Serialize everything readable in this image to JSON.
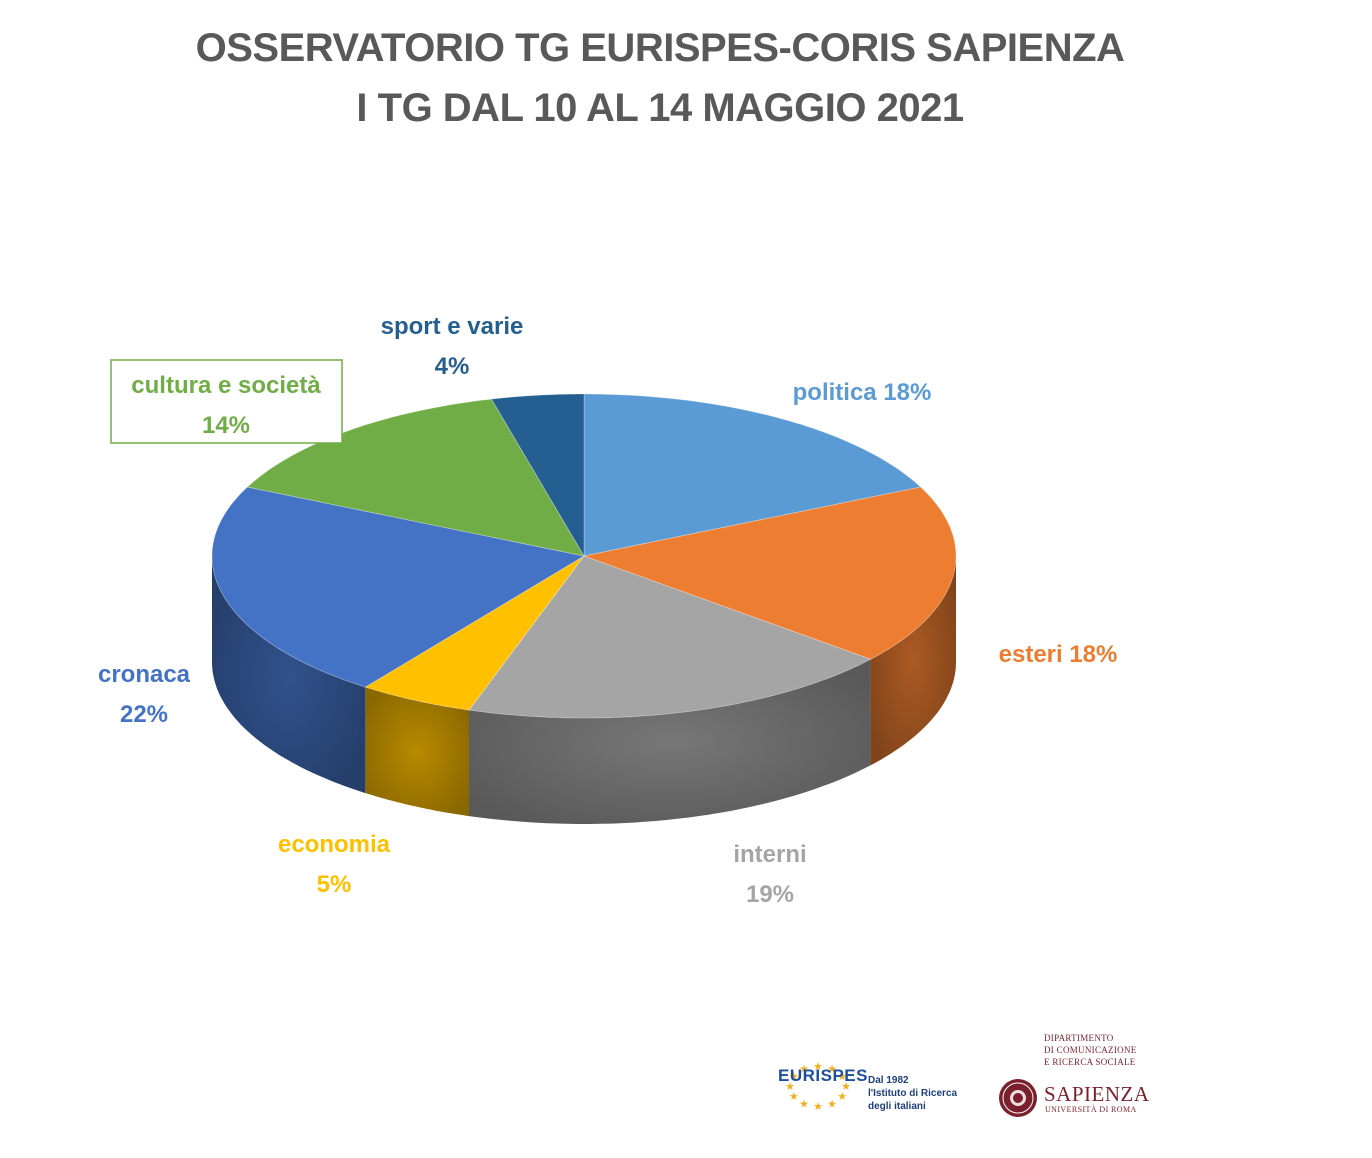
{
  "header": {
    "title_line1": "OSSERVATORIO TG EURISPES-CORIS SAPIENZA",
    "title_line2": "I TG DAL 10 AL 14 MAGGIO 2021"
  },
  "chart_data": {
    "type": "pie",
    "title": "OSSERVATORIO TG EURISPES-CORIS SAPIENZA — I TG DAL 10 AL 14 MAGGIO 2021",
    "legend": "none",
    "slices": [
      {
        "name": "politica",
        "value": 18,
        "display": "politica 18%",
        "color": "#5b9bd5"
      },
      {
        "name": "esteri",
        "value": 18,
        "display": "esteri 18%",
        "color": "#ed7d31"
      },
      {
        "name": "interni",
        "value": 19,
        "display_name": "interni",
        "display_value": "19%",
        "color": "#a5a5a5"
      },
      {
        "name": "economia",
        "value": 5,
        "display_name": "economia",
        "display_value": "5%",
        "color": "#ffc000"
      },
      {
        "name": "cronaca",
        "value": 22,
        "display_name": "cronaca",
        "display_value": "22%",
        "color": "#4472c4"
      },
      {
        "name": "cultura e società",
        "value": 14,
        "display_name": "cultura e società",
        "display_value": "14%",
        "color": "#70ad47"
      },
      {
        "name": "sport e varie",
        "value": 4,
        "display_name": "sport e varie",
        "display_value": "4%",
        "color": "#255e91"
      }
    ]
  },
  "logos": {
    "eurispes": {
      "name": "EURISPES",
      "line1": "Dal 1982",
      "line2": "l'Istituto di Ricerca",
      "line3": "degli italiani"
    },
    "sapienza": {
      "dept_line1": "DIPARTIMENTO",
      "dept_line2": "DI COMUNICAZIONE",
      "dept_line3": "E RICERCA SOCIALE",
      "name": "SAPIENZA",
      "sub": "UNIVERSITÀ DI ROMA"
    }
  }
}
